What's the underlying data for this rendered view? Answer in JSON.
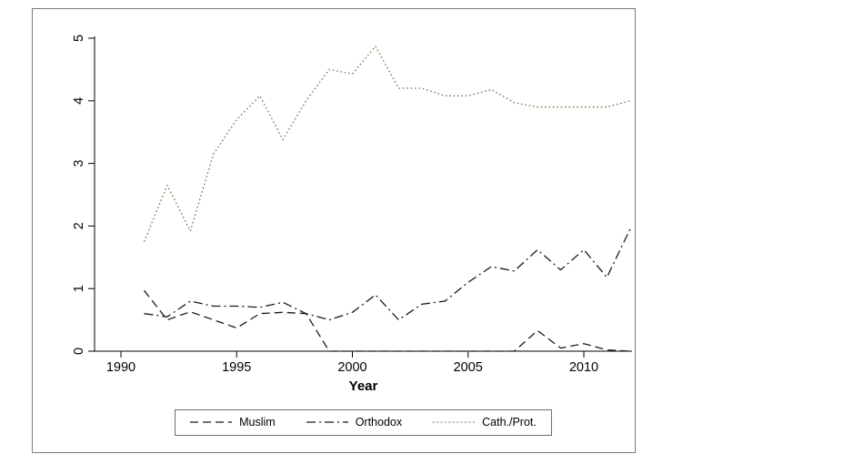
{
  "figure": {
    "x_axis_title": "Year",
    "frame_border_color": "#7a7a7a",
    "axis_color": "#000000",
    "background_color": "#ffffff"
  },
  "chart_data": {
    "type": "line",
    "title": "",
    "xlabel": "Year",
    "ylabel": "",
    "xlim": [
      1989,
      2013
    ],
    "ylim": [
      0,
      5
    ],
    "xticks": [
      "1990",
      "1995",
      "2000",
      "2005",
      "2010"
    ],
    "xtick_values": [
      1990,
      1995,
      2000,
      2005,
      2010
    ],
    "yticks": [
      "0",
      "1",
      "2",
      "3",
      "4",
      "5"
    ],
    "ytick_values": [
      0,
      1,
      2,
      3,
      4,
      5
    ],
    "grid": false,
    "legend_position": "bottom",
    "x": [
      1991,
      1992,
      1993,
      1994,
      1995,
      1996,
      1997,
      1998,
      1999,
      2000,
      2001,
      2002,
      2003,
      2004,
      2005,
      2006,
      2007,
      2008,
      2009,
      2010,
      2011,
      2012
    ],
    "series": [
      {
        "name": "Muslim",
        "color": "#1a1a1a",
        "line_style": "dash",
        "values": [
          0.97,
          0.5,
          0.63,
          0.5,
          0.37,
          0.6,
          0.62,
          0.6,
          0.0,
          0.0,
          0.0,
          0.0,
          0.0,
          0.0,
          0.0,
          0.0,
          0.0,
          0.33,
          0.05,
          0.12,
          0.02,
          0.0
        ]
      },
      {
        "name": "Orthodox",
        "color": "#1a1a1a",
        "line_style": "dash-dot",
        "values": [
          0.6,
          0.55,
          0.8,
          0.72,
          0.72,
          0.7,
          0.78,
          0.6,
          0.5,
          0.62,
          0.9,
          0.5,
          0.75,
          0.8,
          1.1,
          1.35,
          1.28,
          1.62,
          1.3,
          1.62,
          1.18,
          1.95
        ]
      },
      {
        "name": "Cath./Prot.",
        "color": "#6e7b49",
        "line_style": "dot",
        "values": [
          1.75,
          2.65,
          1.92,
          3.15,
          3.7,
          4.08,
          3.38,
          4.0,
          4.5,
          4.43,
          4.87,
          4.2,
          4.2,
          4.08,
          4.08,
          4.18,
          3.97,
          3.9,
          3.9,
          3.9,
          3.9,
          4.0
        ]
      }
    ]
  }
}
